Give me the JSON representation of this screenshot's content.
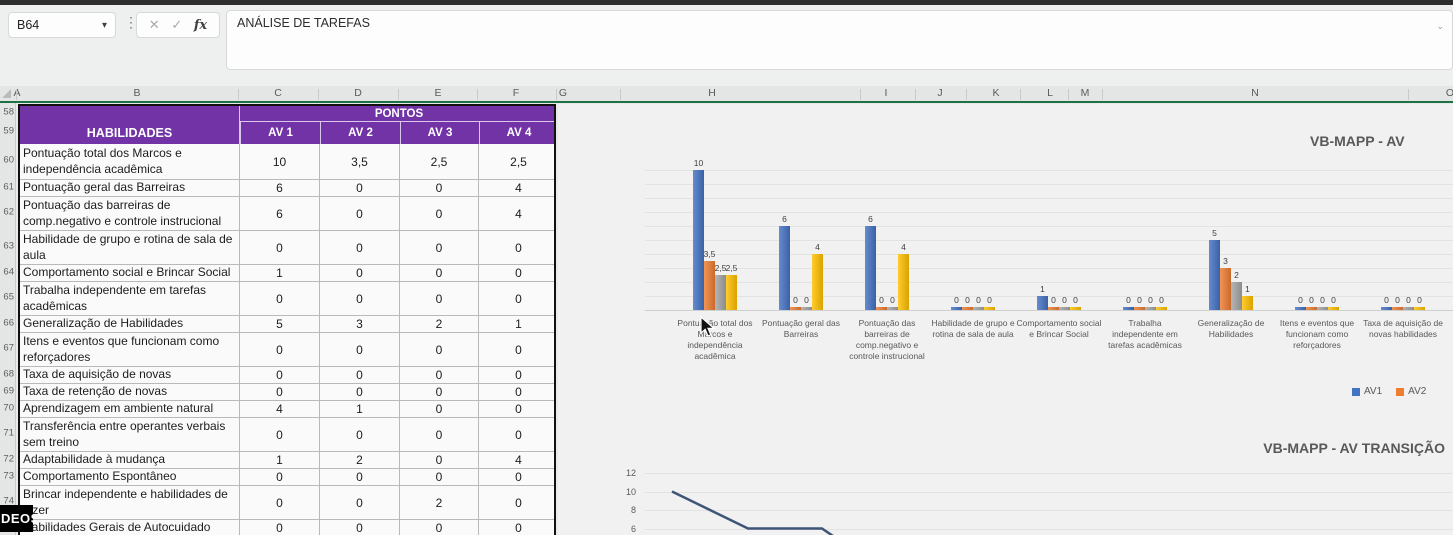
{
  "window": {
    "name_box_value": "B64",
    "formula_bar_value": "ANÁLISE DE TAREFAS",
    "watermark_text": "DEOS"
  },
  "toolbar": {
    "cancel_icon": "✕",
    "enter_icon": "✓",
    "fx_label": "fx",
    "name_box_chevron": "▾",
    "expand_chevron": "⌄"
  },
  "grid": {
    "column_letters": [
      "A",
      "B",
      "C",
      "D",
      "E",
      "F",
      "G",
      "H",
      "I",
      "J",
      "K",
      "L",
      "M",
      "N",
      "O"
    ],
    "row_numbers": [
      "58",
      "59",
      "60",
      "61",
      "62",
      "63",
      "64",
      "65",
      "66",
      "67",
      "68",
      "69",
      "70",
      "71",
      "72",
      "73",
      "74",
      "75"
    ]
  },
  "table": {
    "skills_header": "HABILIDADES",
    "points_header": "PONTOS",
    "av_headers": [
      "AV 1",
      "AV 2",
      "AV 3",
      "AV 4"
    ],
    "rows": [
      {
        "label": "Pontuação total dos Marcos e independência acadêmica",
        "values": [
          "10",
          "3,5",
          "2,5",
          "2,5"
        ]
      },
      {
        "label": "Pontuação geral das Barreiras",
        "values": [
          "6",
          "0",
          "0",
          "4"
        ]
      },
      {
        "label": "Pontuação das barreiras de comp.negativo e controle instrucional",
        "values": [
          "6",
          "0",
          "0",
          "4"
        ]
      },
      {
        "label": "Habilidade de grupo e rotina de sala de aula",
        "values": [
          "0",
          "0",
          "0",
          "0"
        ]
      },
      {
        "label": "Comportamento social e Brincar Social",
        "values": [
          "1",
          "0",
          "0",
          "0"
        ]
      },
      {
        "label": "Trabalha independente em tarefas acadêmicas",
        "values": [
          "0",
          "0",
          "0",
          "0"
        ]
      },
      {
        "label": "Generalização de Habilidades",
        "values": [
          "5",
          "3",
          "2",
          "1"
        ]
      },
      {
        "label": "Itens e eventos que funcionam como reforçadores",
        "values": [
          "0",
          "0",
          "0",
          "0"
        ]
      },
      {
        "label": "Taxa de aquisição de novas",
        "values": [
          "0",
          "0",
          "0",
          "0"
        ]
      },
      {
        "label": "Taxa de retenção de novas",
        "values": [
          "0",
          "0",
          "0",
          "0"
        ]
      },
      {
        "label": "Aprendizagem em ambiente natural",
        "values": [
          "4",
          "1",
          "0",
          "0"
        ]
      },
      {
        "label": "Transferência entre operantes verbais sem treino",
        "values": [
          "0",
          "0",
          "0",
          "0"
        ]
      },
      {
        "label": "Adaptabilidade à mudança",
        "values": [
          "1",
          "2",
          "0",
          "4"
        ]
      },
      {
        "label": "Comportamento Espontâneo",
        "values": [
          "0",
          "0",
          "0",
          "0"
        ]
      },
      {
        "label": "Brincar independente e habilidades de lazer",
        "values": [
          "0",
          "0",
          "2",
          "0"
        ]
      },
      {
        "label": "Habilidades Gerais de Autocuidado",
        "values": [
          "0",
          "0",
          "0",
          "0"
        ]
      }
    ]
  },
  "chart_data": [
    {
      "type": "bar",
      "title": "VB-MAPP - AV",
      "ylim": [
        0,
        10
      ],
      "grid": true,
      "legend_position": "bottom-right",
      "legend_visible_entries": [
        "AV1",
        "AV2"
      ],
      "categories": [
        "Pontuação total dos Marcos e independência acadêmica",
        "Pontuação geral das Barreiras",
        "Pontuação das barreiras de comp.negativo e controle instrucional",
        "Habilidade de grupo e rotina de sala de aula",
        "Comportamento social e Brincar Social",
        "Trabalha independente em tarefas acadêmicas",
        "Generalização de Habilidades",
        "Itens e eventos que funcionam como reforçadores",
        "Taxa de aquisição de novas habilidades"
      ],
      "clipped_category_text": "T",
      "series": [
        {
          "name": "AV1",
          "color": "#4472C4",
          "values": [
            10,
            6,
            6,
            0,
            1,
            0,
            5,
            0,
            0
          ]
        },
        {
          "name": "AV2",
          "color": "#ED7D31",
          "values": [
            3.5,
            0,
            0,
            0,
            0,
            0,
            3,
            0,
            0
          ]
        },
        {
          "name": "AV3",
          "color": "#A5A5A5",
          "values": [
            2.5,
            0,
            0,
            0,
            0,
            0,
            2,
            0,
            0
          ]
        },
        {
          "name": "AV4",
          "color": "#FFC000",
          "values": [
            2.5,
            4,
            4,
            0,
            0,
            0,
            1,
            0,
            0
          ]
        }
      ]
    },
    {
      "type": "line",
      "title": "VB-MAPP - AV TRANSIÇÃO",
      "yticks": [
        12,
        10,
        8,
        6
      ],
      "line_color": "#3E5577",
      "values_visible": [
        10,
        6,
        6
      ],
      "clipped_bottom": true
    }
  ]
}
